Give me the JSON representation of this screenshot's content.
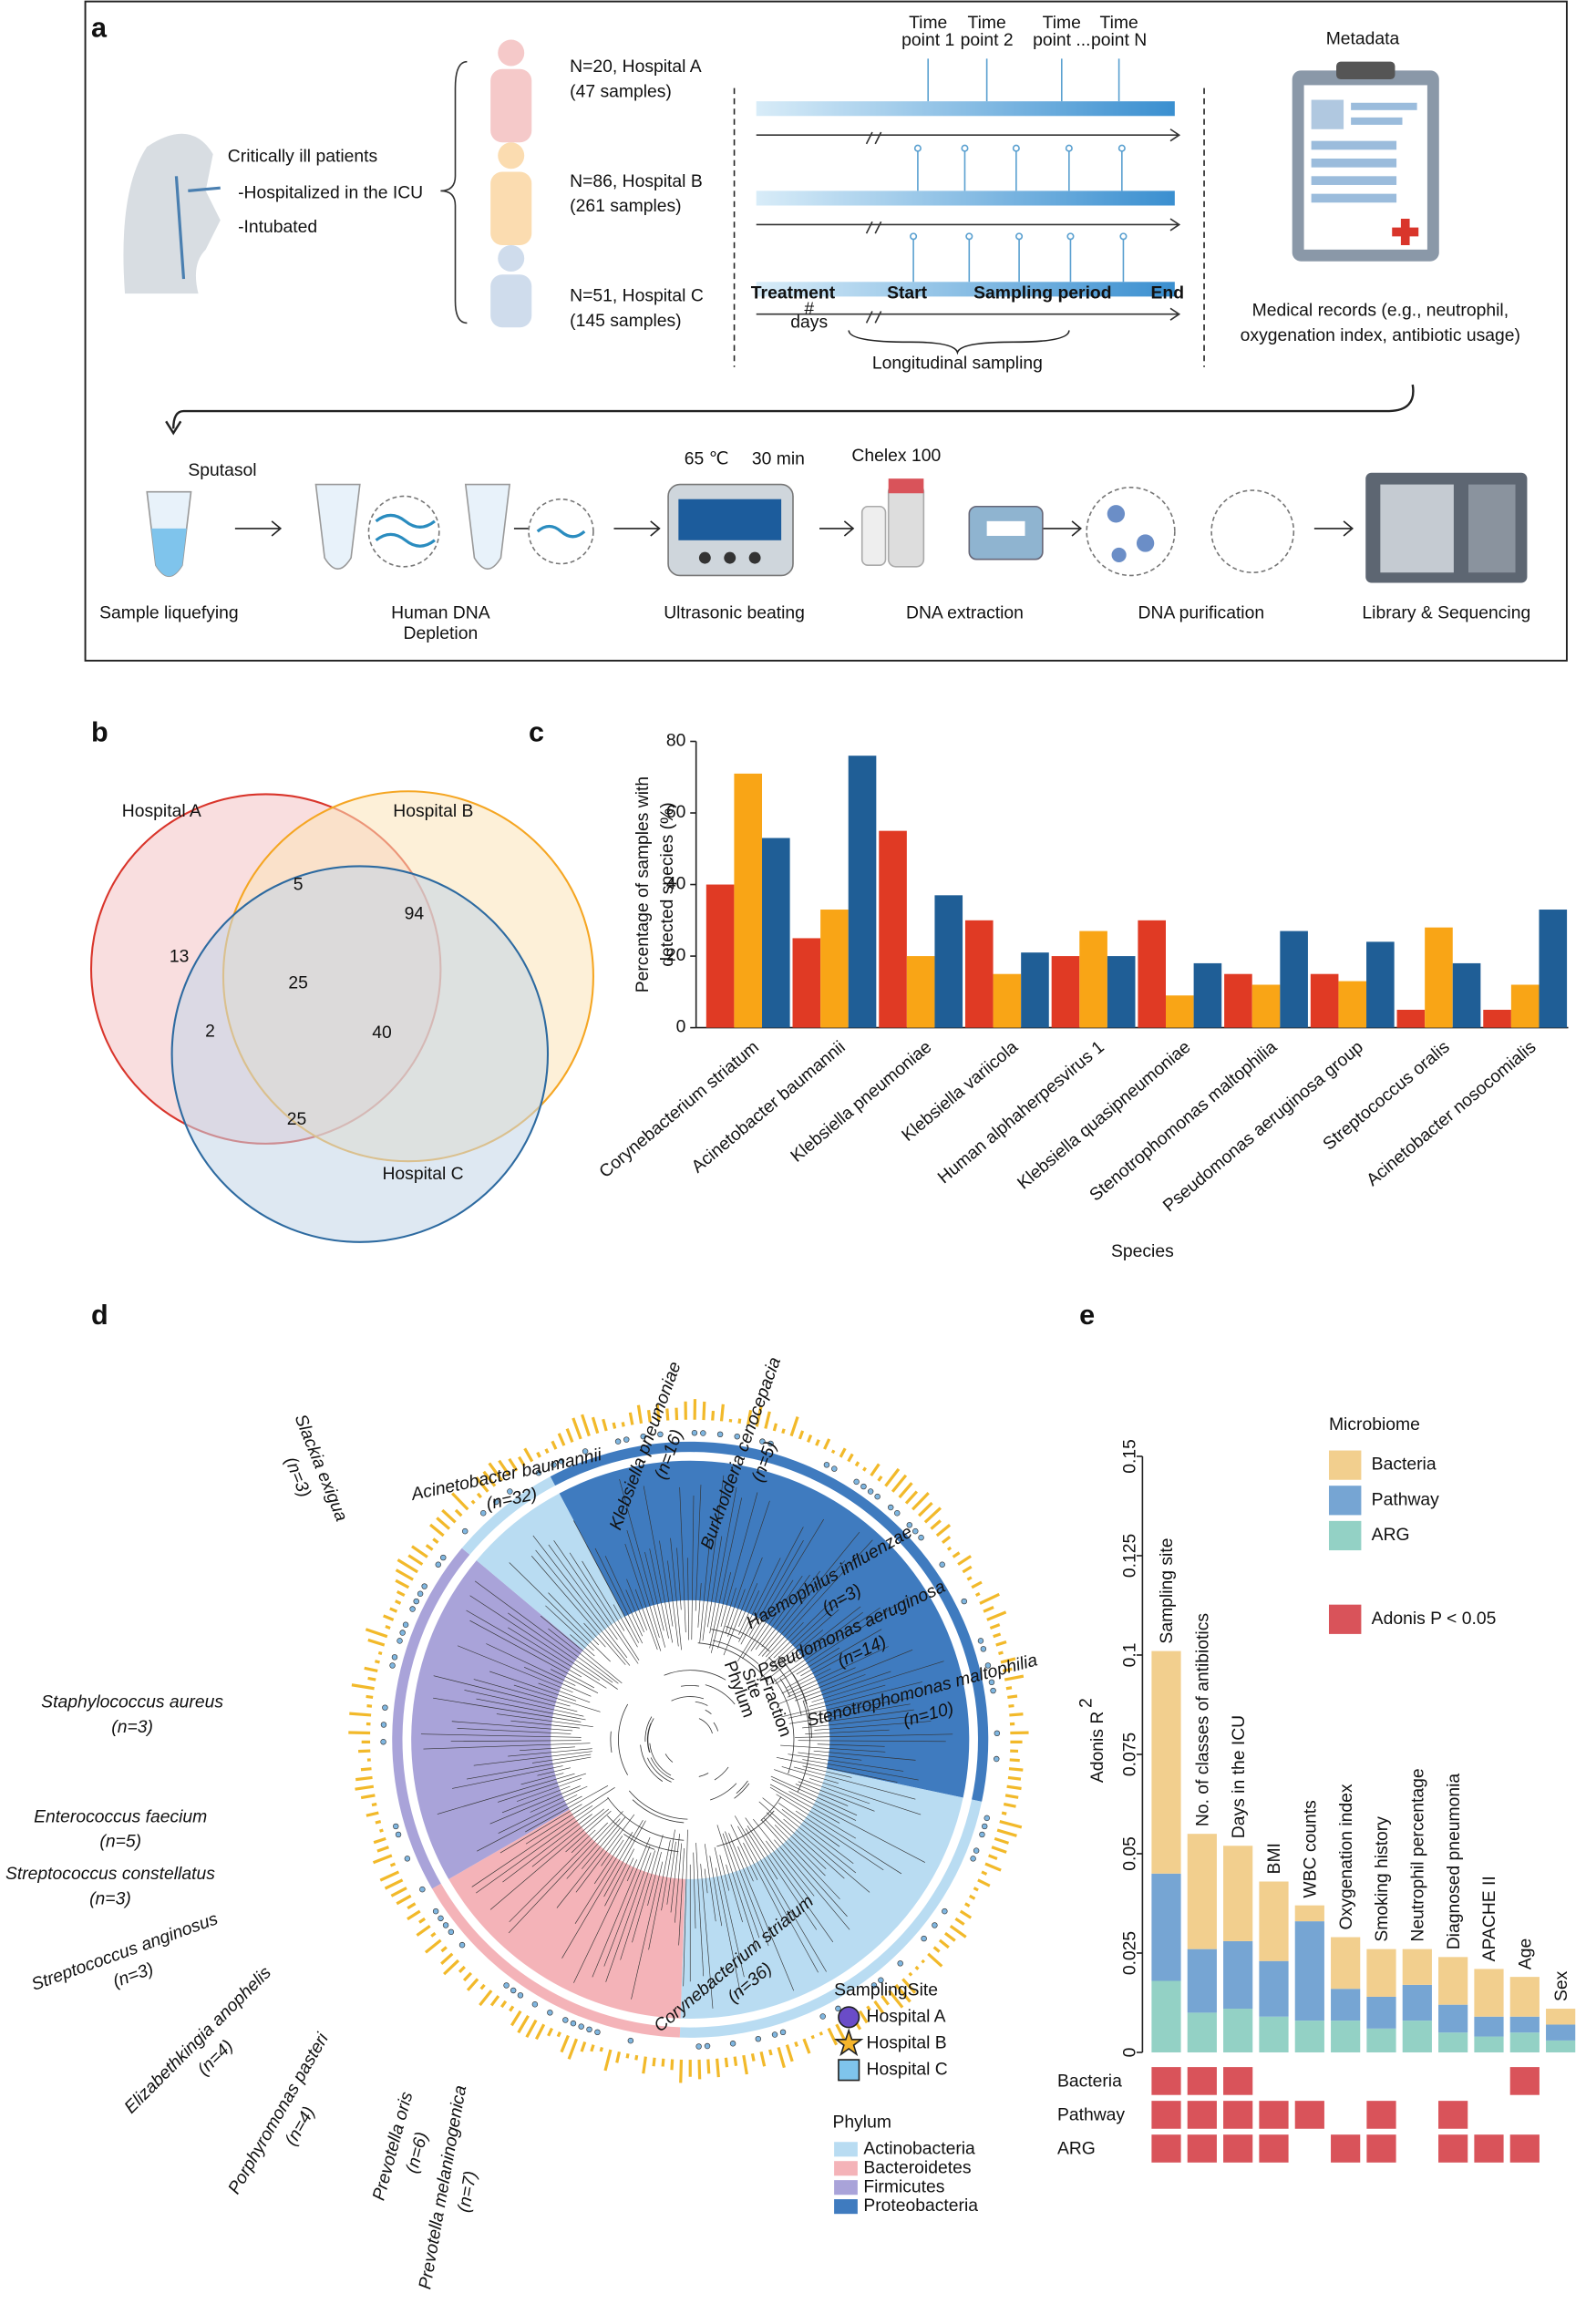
{
  "panel_a": {
    "label": "a",
    "patients": {
      "title": "Critically ill patients",
      "lines": [
        "-Hospitalized in the ICU",
        "-Intubated"
      ]
    },
    "cohorts": [
      {
        "n": "N=20, Hospital A",
        "samples": "(47 samples)"
      },
      {
        "n": "N=86, Hospital B",
        "samples": "(261 samples)"
      },
      {
        "n": "N=51, Hospital C",
        "samples": "(145 samples)"
      }
    ],
    "timepoints": [
      [
        "Time",
        "point 1"
      ],
      [
        "Time",
        "point 2"
      ],
      [
        "Time",
        "point ..."
      ],
      [
        "Time",
        "point N"
      ]
    ],
    "timeline": {
      "treatment": "Treatment",
      "days": [
        "#",
        "days"
      ],
      "start": "Start",
      "period": "Sampling period",
      "end": "End",
      "caption": "Longitudinal sampling"
    },
    "metadata": {
      "title": "Metadata",
      "caption": [
        "Medical records (e.g., neutrophil,",
        "oxygenation index, antibiotic usage)"
      ]
    },
    "steps": [
      {
        "label": [
          "Sample liquefying"
        ],
        "reagent": "Sputasol"
      },
      {
        "label": [
          "Human DNA",
          "Depletion"
        ]
      },
      {
        "label": [
          "Ultrasonic beating"
        ],
        "settings": [
          "65 ℃",
          "30 min"
        ]
      },
      {
        "label": [
          "DNA extraction"
        ],
        "reagent": "Chelex 100"
      },
      {
        "label": [
          "DNA purification"
        ]
      },
      {
        "label": [
          "Library & Sequencing"
        ]
      }
    ]
  },
  "panel_b": {
    "label": "b",
    "type": "venn",
    "sets": [
      {
        "name": "Hospital A",
        "color": "#d9352b",
        "fill": "#f4c3c4"
      },
      {
        "name": "Hospital B",
        "color": "#f5a623",
        "fill": "#fbe3b8"
      },
      {
        "name": "Hospital C",
        "color": "#2d6aa0",
        "fill": "#c3d6e8"
      }
    ],
    "regions": {
      "A_only": 13,
      "AB": 5,
      "B_only": 94,
      "ABC": 25,
      "AC": 2,
      "BC": 40,
      "C_only": 25
    }
  },
  "chart_data": [
    {
      "panel": "c",
      "type": "bar",
      "ylabel": [
        "Percentage of samples with",
        "detected species (%)"
      ],
      "xlabel": "Species",
      "categories": [
        "Corynebacterium striatum",
        "Acinetobacter baumannii",
        "Klebsiella pneumoniae",
        "Klebsiella variicola",
        "Human alphaherpesvirus 1",
        "Klebsiella quasipneumoniae",
        "Stenotrophomonas maltophilia",
        "Pseudomonas aeruginosa group",
        "Streptococcus oralis",
        "Acinetobacter nosocomialis"
      ],
      "series": [
        {
          "color": "#e03a24",
          "values": [
            40,
            25,
            55,
            30,
            20,
            30,
            15,
            15,
            5,
            5
          ]
        },
        {
          "color": "#f9a516",
          "values": [
            71,
            33,
            20,
            15,
            27,
            9,
            12,
            13,
            28,
            12
          ]
        },
        {
          "color": "#1f5e96",
          "values": [
            53,
            76,
            37,
            21,
            20,
            18,
            27,
            24,
            18,
            33
          ]
        }
      ],
      "ylim": [
        0,
        80
      ],
      "yticks": [
        0,
        20,
        40,
        60,
        80
      ]
    },
    {
      "panel": "e",
      "type": "stacked_bar",
      "ylabel": "Adonis R",
      "ylabel_sup": "2",
      "legend_title": "Microbiome",
      "categories": [
        "Sampling site",
        "No. of classes of antibiotics",
        "Days in the ICU",
        "BMI",
        "WBC counts",
        "Oxygenation index",
        "Smoking history",
        "Neutrophil percentage",
        "Diagnosed pneumonia",
        "APACHE II",
        "Age",
        "Sex"
      ],
      "series": [
        {
          "name": "Bacteria",
          "color": "#f2cf8e",
          "values": [
            0.056,
            0.029,
            0.024,
            0.02,
            0.004,
            0.013,
            0.012,
            0.009,
            0.012,
            0.012,
            0.01,
            0.004
          ]
        },
        {
          "name": "Pathway",
          "color": "#76a5d3",
          "values": [
            0.027,
            0.016,
            0.017,
            0.014,
            0.025,
            0.008,
            0.008,
            0.009,
            0.007,
            0.005,
            0.004,
            0.004
          ]
        },
        {
          "name": "ARG",
          "color": "#93d1c5",
          "values": [
            0.018,
            0.01,
            0.011,
            0.009,
            0.008,
            0.008,
            0.006,
            0.008,
            0.005,
            0.004,
            0.005,
            0.003
          ]
        }
      ],
      "stack_order": [
        "ARG",
        "Pathway",
        "Bacteria"
      ],
      "ylim": [
        0,
        0.15
      ],
      "yticks": [
        0,
        0.025,
        0.05,
        0.075,
        0.1,
        0.125,
        0.15
      ],
      "significance": {
        "legend": "Adonis P < 0.05",
        "color": "#d9535a",
        "rows": [
          {
            "name": "Bacteria",
            "values": [
              true,
              true,
              true,
              false,
              false,
              false,
              false,
              false,
              false,
              false,
              true,
              false
            ]
          },
          {
            "name": "Pathway",
            "values": [
              true,
              true,
              true,
              true,
              true,
              false,
              true,
              false,
              true,
              false,
              false,
              false
            ]
          },
          {
            "name": "ARG",
            "values": [
              true,
              true,
              true,
              true,
              false,
              true,
              true,
              false,
              true,
              true,
              true,
              false
            ]
          }
        ]
      }
    }
  ],
  "panel_d": {
    "label": "d",
    "species": [
      {
        "name": "Acinetobacter baumannii",
        "n": "(n=32)",
        "color": "#d7191c"
      },
      {
        "name": "Slackia exigua",
        "n": "(n=3)",
        "color": "#7ec8e3"
      },
      {
        "name": "Klebsiella pneumoniae",
        "n": "(n=16)",
        "color": "#5ab4d6"
      },
      {
        "name": "Burkholderia cenocepacia",
        "n": "(n=5)",
        "color": "#6a3d9a"
      },
      {
        "name": "Haemophilus influenzae",
        "n": "(n=3)",
        "color": "#f0a20a"
      },
      {
        "name": "Pseudomonas aeruginosa",
        "n": "(n=14)",
        "color": "#3a9a6a"
      },
      {
        "name": "Stenotrophomonas maltophilia",
        "n": "(n=10)",
        "color": "#666666"
      },
      {
        "name": "Staphylococcus aureus",
        "n": "(n=3)",
        "color": "#c5c838"
      },
      {
        "name": "Enterococcus faecium",
        "n": "(n=5)",
        "color": "#2c2f7a"
      },
      {
        "name": "Streptococcus constellatus",
        "n": "(n=3)",
        "color": "#8cc06a"
      },
      {
        "name": "Streptococcus anginosus",
        "n": "(n=3)",
        "color": "#f5b895"
      },
      {
        "name": "Elizabethkingia anophelis",
        "n": "(n=4)",
        "color": "#c2187a"
      },
      {
        "name": "Porphyromonas pasteri",
        "n": "(n=4)",
        "color": "#2ea043"
      },
      {
        "name": "Prevotella oris",
        "n": "(n=6)",
        "color": "#4a90c8"
      },
      {
        "name": "Prevotella melaninogenica",
        "n": "(n=7)",
        "color": "#e87722"
      },
      {
        "name": "Corynebacterium striatum",
        "n": "(n=36)",
        "color": "#2e5fa3"
      }
    ],
    "rings": [
      "Phylum",
      "Site",
      "Fraction"
    ],
    "site_legend": {
      "title": "SamplingSite",
      "items": [
        "Hospital A",
        "Hospital B",
        "Hospital C"
      ]
    },
    "phylum_legend": {
      "title": "Phylum",
      "items": [
        {
          "name": "Actinobacteria",
          "color": "#b9dcf2"
        },
        {
          "name": "Bacteroidetes",
          "color": "#f4b3b8"
        },
        {
          "name": "Firmicutes",
          "color": "#a9a3d9"
        },
        {
          "name": "Proteobacteria",
          "color": "#3f7bbf"
        }
      ]
    }
  }
}
